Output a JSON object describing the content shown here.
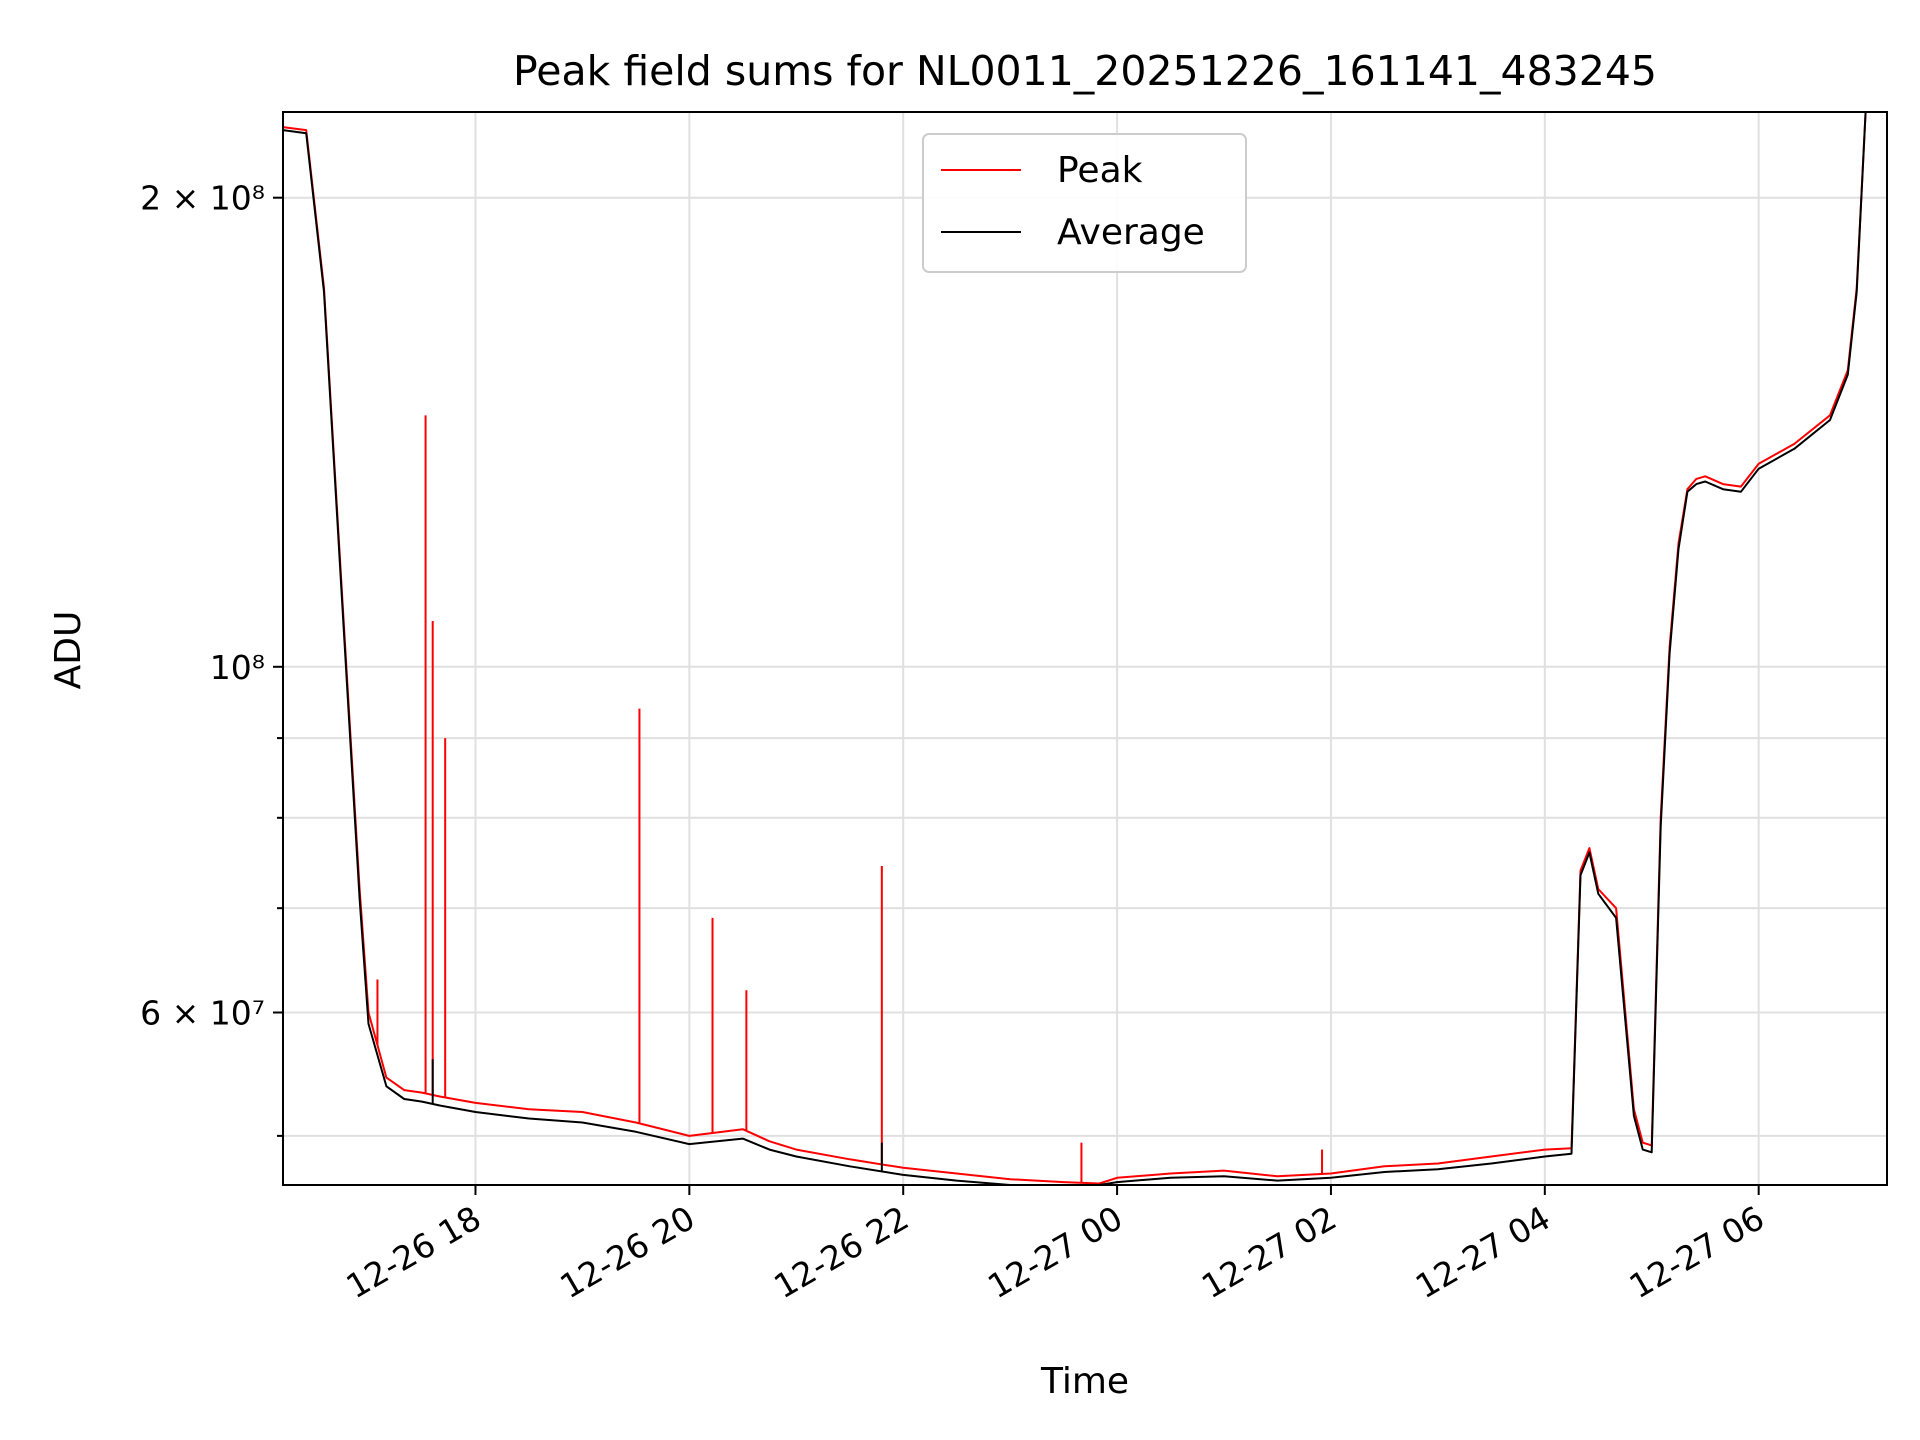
{
  "chart_data": {
    "type": "line",
    "title": "Peak field sums for NL0011_20251226_161141_483245",
    "xlabel": "Time",
    "ylabel": "ADU",
    "yscale": "log",
    "ylim": [
      46500000,
      227000000
    ],
    "xlim": [
      "12-26 16:12",
      "12-27 07:12"
    ],
    "x_ticks": [
      "12-26 18",
      "12-26 20",
      "12-26 22",
      "12-27 00",
      "12-27 02",
      "12-27 04",
      "12-27 06"
    ],
    "y_ticks": [
      {
        "value": 200000000,
        "label": "2 × 10⁸"
      },
      {
        "value": 100000000,
        "label": "10⁸"
      },
      {
        "value": 60000000,
        "label": "6 × 10⁷"
      }
    ],
    "y_minor_grid": [
      50000000,
      70000000,
      80000000,
      90000000
    ],
    "grid": true,
    "legend": "top-center",
    "series": [
      {
        "name": "Peak",
        "color": "#ff0000",
        "x": [
          "12-26 16:12",
          "12-26 16:25",
          "12-26 16:35",
          "12-26 16:45",
          "12-26 16:55",
          "12-26 17:00",
          "12-26 17:10",
          "12-26 17:20",
          "12-26 17:30",
          "12-26 17:40",
          "12-26 18:00",
          "12-26 18:30",
          "12-26 19:00",
          "12-26 19:30",
          "12-26 20:00",
          "12-26 20:30",
          "12-26 20:45",
          "12-26 21:00",
          "12-26 21:30",
          "12-26 22:00",
          "12-26 22:30",
          "12-26 23:00",
          "12-26 23:30",
          "12-26 23:50",
          "12-27 00:00",
          "12-27 00:30",
          "12-27 01:00",
          "12-27 01:30",
          "12-27 02:00",
          "12-27 02:30",
          "12-27 03:00",
          "12-27 03:30",
          "12-27 04:00",
          "12-27 04:15",
          "12-27 04:20",
          "12-27 04:25",
          "12-27 04:30",
          "12-27 04:40",
          "12-27 04:50",
          "12-27 04:55",
          "12-27 05:00",
          "12-27 05:05",
          "12-27 05:10",
          "12-27 05:15",
          "12-27 05:20",
          "12-27 05:25",
          "12-27 05:30",
          "12-27 05:40",
          "12-27 05:50",
          "12-27 06:00",
          "12-27 06:20",
          "12-27 06:40",
          "12-27 06:50",
          "12-27 06:55",
          "12-27 07:00"
        ],
        "values": [
          222000000,
          221000000,
          175000000,
          112000000,
          72000000,
          60000000,
          54500000,
          53500000,
          53300000,
          53000000,
          52500000,
          52000000,
          51800000,
          51000000,
          50000000,
          50500000,
          49600000,
          49000000,
          48300000,
          47700000,
          47300000,
          46900000,
          46700000,
          46600000,
          47000000,
          47300000,
          47500000,
          47100000,
          47300000,
          47800000,
          48000000,
          48500000,
          49000000,
          49100000,
          74000000,
          76500000,
          72000000,
          70000000,
          52000000,
          49500000,
          49300000,
          80000000,
          103000000,
          120000000,
          130000000,
          132000000,
          132500000,
          131000000,
          130500000,
          135000000,
          139000000,
          145000000,
          155000000,
          175000000,
          227000000
        ],
        "spikes": [
          {
            "x": "12-26 17:05",
            "value": 63000000
          },
          {
            "x": "12-26 17:32",
            "value": 145000000
          },
          {
            "x": "12-26 17:36",
            "value": 107000000
          },
          {
            "x": "12-26 17:43",
            "value": 90000000
          },
          {
            "x": "12-26 19:32",
            "value": 94000000
          },
          {
            "x": "12-26 20:13",
            "value": 69000000
          },
          {
            "x": "12-26 20:32",
            "value": 62000000
          },
          {
            "x": "12-26 21:48",
            "value": 74500000
          },
          {
            "x": "12-26 23:40",
            "value": 49500000
          },
          {
            "x": "12-27 01:55",
            "value": 49000000
          }
        ]
      },
      {
        "name": "Average",
        "color": "#000000",
        "x": [
          "12-26 16:12",
          "12-26 16:25",
          "12-26 16:35",
          "12-26 16:45",
          "12-26 16:55",
          "12-26 17:00",
          "12-26 17:10",
          "12-26 17:20",
          "12-26 17:30",
          "12-26 17:40",
          "12-26 18:00",
          "12-26 18:30",
          "12-26 19:00",
          "12-26 19:30",
          "12-26 20:00",
          "12-26 20:30",
          "12-26 20:45",
          "12-26 21:00",
          "12-26 21:30",
          "12-26 22:00",
          "12-26 22:30",
          "12-26 23:00",
          "12-26 23:30",
          "12-26 23:50",
          "12-27 00:00",
          "12-27 00:30",
          "12-27 01:00",
          "12-27 01:30",
          "12-27 02:00",
          "12-27 02:30",
          "12-27 03:00",
          "12-27 03:30",
          "12-27 04:00",
          "12-27 04:15",
          "12-27 04:20",
          "12-27 04:25",
          "12-27 04:30",
          "12-27 04:40",
          "12-27 04:50",
          "12-27 04:55",
          "12-27 05:00",
          "12-27 05:05",
          "12-27 05:10",
          "12-27 05:15",
          "12-27 05:20",
          "12-27 05:25",
          "12-27 05:30",
          "12-27 05:40",
          "12-27 05:50",
          "12-27 06:00",
          "12-27 06:20",
          "12-27 06:40",
          "12-27 06:50",
          "12-27 06:55",
          "12-27 07:00"
        ],
        "values": [
          221000000,
          220000000,
          174000000,
          111000000,
          71000000,
          59000000,
          53800000,
          52800000,
          52600000,
          52300000,
          51800000,
          51300000,
          51000000,
          50300000,
          49400000,
          49800000,
          49000000,
          48500000,
          47800000,
          47200000,
          46800000,
          46500000,
          46300000,
          46300000,
          46700000,
          47000000,
          47100000,
          46800000,
          47000000,
          47400000,
          47600000,
          48000000,
          48500000,
          48700000,
          73500000,
          76000000,
          71500000,
          69000000,
          51500000,
          49000000,
          48800000,
          79000000,
          102000000,
          119000000,
          129500000,
          131000000,
          131500000,
          130000000,
          129500000,
          134000000,
          138000000,
          144000000,
          154000000,
          174000000,
          227000000
        ],
        "spikes": [
          {
            "x": "12-26 17:36",
            "value": 56000000
          },
          {
            "x": "12-26 21:48",
            "value": 49500000
          }
        ]
      }
    ]
  }
}
